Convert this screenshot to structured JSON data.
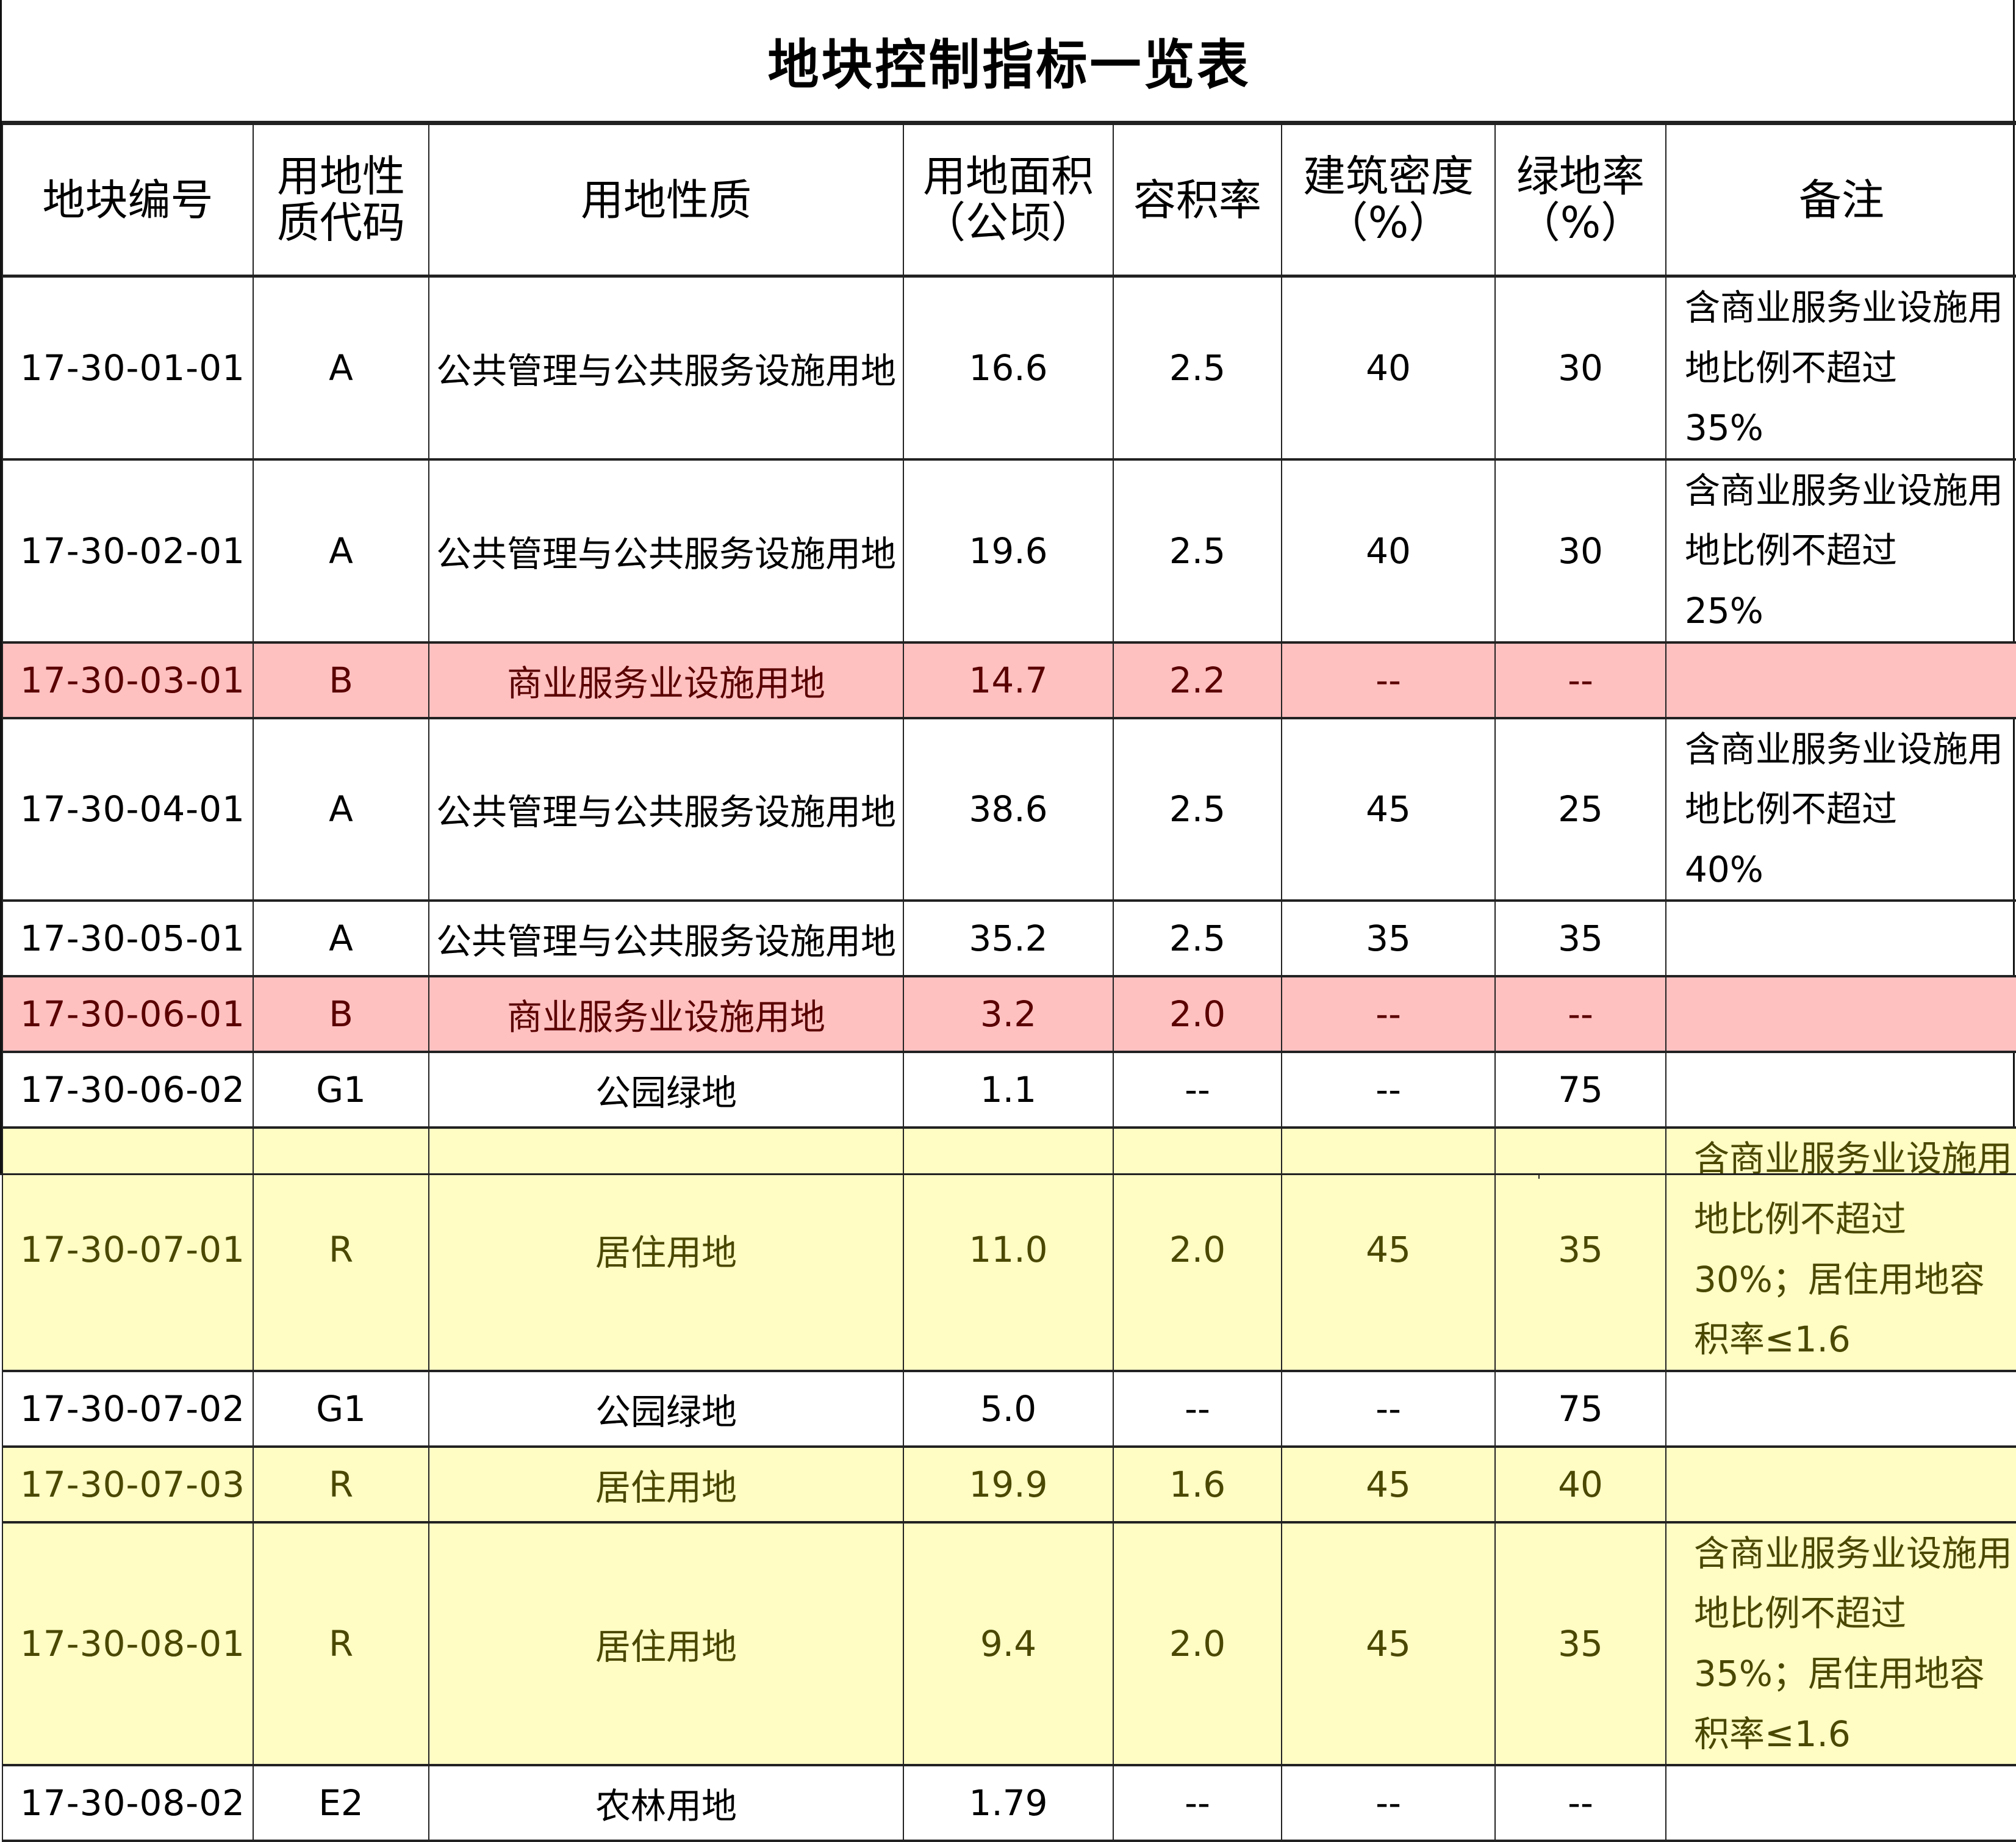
{
  "title": "地块控制指标一览表",
  "table": {
    "headers": {
      "parcel_id": "地块编号",
      "land_use_code": "用地性质代码",
      "land_use_code_line1": "用地性",
      "land_use_code_line2": "质代码",
      "land_use": "用地性质",
      "area_line1": "用地面积",
      "area_line2": "（公顷）",
      "far": "容积率",
      "density_line1": "建筑密度",
      "density_line2": "（%）",
      "green_line1": "绿地率",
      "green_line2": "（%）",
      "remarks": "备注"
    },
    "rows": [
      {
        "parcel_id": "17-30-01-01",
        "code": "A",
        "land_use": "公共管理与公共服务设施用地",
        "area": "16.6",
        "far": "2.5",
        "density": "40",
        "green": "30",
        "remark_line1": "含商业服务业设施用地比例不超过",
        "remark_line2": "35%",
        "highlight": "none"
      },
      {
        "parcel_id": "17-30-02-01",
        "code": "A",
        "land_use": "公共管理与公共服务设施用地",
        "area": "19.6",
        "far": "2.5",
        "density": "40",
        "green": "30",
        "remark_line1": "含商业服务业设施用地比例不超过",
        "remark_line2": "25%",
        "highlight": "none"
      },
      {
        "parcel_id": "17-30-03-01",
        "code": "B",
        "land_use": "商业服务业设施用地",
        "area": "14.7",
        "far": "2.2",
        "density": "--",
        "green": "--",
        "remark_line1": "",
        "remark_line2": "",
        "highlight": "pink"
      },
      {
        "parcel_id": "17-30-04-01",
        "code": "A",
        "land_use": "公共管理与公共服务设施用地",
        "area": "38.6",
        "far": "2.5",
        "density": "45",
        "green": "25",
        "remark_line1": "含商业服务业设施用地比例不超过",
        "remark_line2": "40%",
        "highlight": "none"
      },
      {
        "parcel_id": "17-30-05-01",
        "code": "A",
        "land_use": "公共管理与公共服务设施用地",
        "area": "35.2",
        "far": "2.5",
        "density": "35",
        "green": "35",
        "remark_line1": "",
        "remark_line2": "",
        "highlight": "none"
      },
      {
        "parcel_id": "17-30-06-01",
        "code": "B",
        "land_use": "商业服务业设施用地",
        "area": "3.2",
        "far": "2.0",
        "density": "--",
        "green": "--",
        "remark_line1": "",
        "remark_line2": "",
        "highlight": "pink"
      },
      {
        "parcel_id": "17-30-06-02",
        "code": "G1",
        "land_use": "公园绿地",
        "area": "1.1",
        "far": "--",
        "density": "--",
        "green": "75",
        "remark_line1": "",
        "remark_line2": "",
        "highlight": "none"
      },
      {
        "parcel_id": "17-30-07-01",
        "code": "R",
        "land_use": "居住用地",
        "area": "11.0",
        "far": "2.0",
        "density": "45",
        "green": "35",
        "remark_line1": "含商业服务业设施用地比例不超过",
        "remark_line2": "30%；居住用地容积率≤1.6",
        "highlight": "yellow"
      },
      {
        "parcel_id": "17-30-07-02",
        "code": "G1",
        "land_use": "公园绿地",
        "area": "5.0",
        "far": "--",
        "density": "--",
        "green": "75",
        "remark_line1": "",
        "remark_line2": "",
        "highlight": "none"
      },
      {
        "parcel_id": "17-30-07-03",
        "code": "R",
        "land_use": "居住用地",
        "area": "19.9",
        "far": "1.6",
        "density": "45",
        "green": "40",
        "remark_line1": "",
        "remark_line2": "",
        "highlight": "yellow"
      },
      {
        "parcel_id": "17-30-08-01",
        "code": "R",
        "land_use": "居住用地",
        "area": "9.4",
        "far": "2.0",
        "density": "45",
        "green": "35",
        "remark_line1": "含商业服务业设施用地比例不超过",
        "remark_line2": "35%；居住用地容积率≤1.6",
        "highlight": "yellow"
      },
      {
        "parcel_id": "17-30-08-02",
        "code": "E2",
        "land_use": "农林用地",
        "area": "1.79",
        "far": "--",
        "density": "--",
        "green": "--",
        "remark_line1": "",
        "remark_line2": "",
        "highlight": "none"
      }
    ]
  },
  "colors": {
    "commercial_row_bg": "#ffc0c0",
    "commercial_row_text": "#5a0000",
    "residential_row_bg": "#fffcc4",
    "residential_row_text": "#4a4800",
    "border": "#222222"
  }
}
